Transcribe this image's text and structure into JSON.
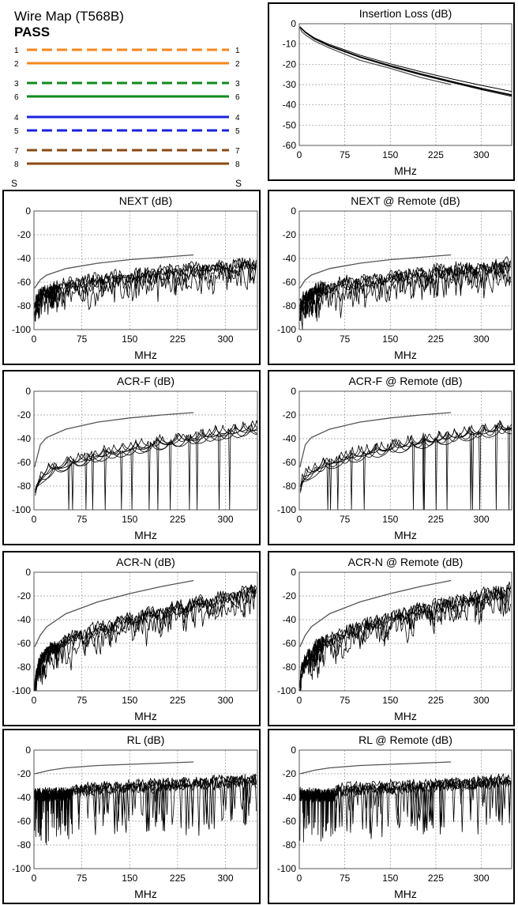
{
  "wire_map": {
    "title": "Wire Map (T568B)",
    "status": "PASS",
    "shield_left": "S",
    "shield_right": "S",
    "pins": [
      {
        "left": "1",
        "right": "1",
        "color": "#f5861f",
        "dashed": true
      },
      {
        "left": "2",
        "right": "2",
        "color": "#f5861f",
        "dashed": false
      },
      {
        "left": "3",
        "right": "3",
        "color": "#0f8a1e",
        "dashed": true
      },
      {
        "left": "6",
        "right": "6",
        "color": "#0f8a1e",
        "dashed": false
      },
      {
        "left": "4",
        "right": "4",
        "color": "#1a22e0",
        "dashed": false
      },
      {
        "left": "5",
        "right": "5",
        "color": "#1a22e0",
        "dashed": true
      },
      {
        "left": "7",
        "right": "7",
        "color": "#8a4a14",
        "dashed": true
      },
      {
        "left": "8",
        "right": "8",
        "color": "#8a4a14",
        "dashed": false
      }
    ]
  },
  "chart_data": [
    {
      "id": "il",
      "type": "line",
      "title": "Insertion Loss (dB)",
      "xlabel": "MHz",
      "ylabel": "",
      "xlim": [
        0,
        350
      ],
      "ylim": [
        -60,
        0
      ],
      "yticks": [
        0,
        -10,
        -20,
        -30,
        -40,
        -50,
        -60
      ],
      "xticks": [
        0,
        75,
        150,
        225,
        300
      ],
      "grid": true,
      "kind": "il",
      "limit": {
        "x": [
          1,
          4,
          10,
          25,
          50,
          100,
          150,
          200,
          250
        ],
        "y": [
          -2,
          -3.8,
          -5.5,
          -8.5,
          -12,
          -18,
          -22,
          -26.5,
          -30
        ]
      },
      "series": [
        {
          "x": [
            1,
            10,
            25,
            50,
            100,
            150,
            200,
            250,
            300,
            350
          ],
          "y": [
            -1.6,
            -4.2,
            -7.3,
            -10.8,
            -16.2,
            -20.6,
            -24.6,
            -28.3,
            -31.8,
            -35.0
          ]
        },
        {
          "x": [
            1,
            10,
            25,
            50,
            100,
            150,
            200,
            250,
            300,
            350
          ],
          "y": [
            -1.7,
            -4.4,
            -7.6,
            -11.1,
            -16.6,
            -21.1,
            -25.2,
            -28.9,
            -32.5,
            -35.8
          ]
        },
        {
          "x": [
            1,
            10,
            25,
            50,
            100,
            150,
            200,
            250,
            300,
            350
          ],
          "y": [
            -1.5,
            -4.0,
            -7.0,
            -10.3,
            -15.5,
            -19.8,
            -23.6,
            -27.1,
            -30.4,
            -33.4
          ]
        },
        {
          "x": [
            1,
            10,
            25,
            50,
            100,
            150,
            200,
            250,
            300,
            350
          ],
          "y": [
            -1.6,
            -4.3,
            -7.4,
            -10.9,
            -16.3,
            -20.8,
            -24.9,
            -28.6,
            -32.1,
            -35.3
          ]
        }
      ]
    },
    {
      "id": "next",
      "type": "line",
      "title": "NEXT (dB)",
      "xlabel": "MHz",
      "ylabel": "",
      "xlim": [
        0,
        350
      ],
      "ylim": [
        -100,
        0
      ],
      "yticks": [
        0,
        -20,
        -40,
        -60,
        -80,
        -100
      ],
      "xticks": [
        0,
        75,
        150,
        225,
        300
      ],
      "grid": true,
      "kind": "next",
      "seed": 11,
      "limit": {
        "x": [
          1,
          10,
          20,
          50,
          100,
          150,
          200,
          250
        ],
        "y": [
          -65,
          -58,
          -54,
          -48.5,
          -44,
          -41,
          -39,
          -37
        ]
      }
    },
    {
      "id": "next_r",
      "type": "line",
      "title": "NEXT @ Remote (dB)",
      "xlabel": "MHz",
      "ylabel": "",
      "xlim": [
        0,
        350
      ],
      "ylim": [
        -100,
        0
      ],
      "yticks": [
        0,
        -20,
        -40,
        -60,
        -80,
        -100
      ],
      "xticks": [
        0,
        75,
        150,
        225,
        300
      ],
      "grid": true,
      "kind": "next",
      "seed": 23,
      "limit": {
        "x": [
          1,
          10,
          20,
          50,
          100,
          150,
          200,
          250
        ],
        "y": [
          -65,
          -58,
          -54,
          -48.5,
          -44,
          -41,
          -39,
          -37
        ]
      }
    },
    {
      "id": "acrf",
      "type": "line",
      "title": "ACR-F (dB)",
      "xlabel": "MHz",
      "ylabel": "",
      "xlim": [
        0,
        350
      ],
      "ylim": [
        -100,
        0
      ],
      "yticks": [
        0,
        -20,
        -40,
        -60,
        -80,
        -100
      ],
      "xticks": [
        0,
        75,
        150,
        225,
        300
      ],
      "grid": true,
      "kind": "acrf",
      "seed": 37,
      "limit": {
        "x": [
          1,
          10,
          20,
          50,
          100,
          150,
          200,
          250
        ],
        "y": [
          -64,
          -45,
          -39,
          -32,
          -26,
          -22.5,
          -20,
          -18
        ]
      }
    },
    {
      "id": "acrf_r",
      "type": "line",
      "title": "ACR-F @ Remote (dB)",
      "xlabel": "MHz",
      "ylabel": "",
      "xlim": [
        0,
        350
      ],
      "ylim": [
        -100,
        0
      ],
      "yticks": [
        0,
        -20,
        -40,
        -60,
        -80,
        -100
      ],
      "xticks": [
        0,
        75,
        150,
        225,
        300
      ],
      "grid": true,
      "kind": "acrf",
      "seed": 41,
      "limit": {
        "x": [
          1,
          10,
          20,
          50,
          100,
          150,
          200,
          250
        ],
        "y": [
          -64,
          -45,
          -39,
          -32,
          -26,
          -22.5,
          -20,
          -18
        ]
      }
    },
    {
      "id": "acrn",
      "type": "line",
      "title": "ACR-N (dB)",
      "xlabel": "MHz",
      "ylabel": "",
      "xlim": [
        0,
        350
      ],
      "ylim": [
        -100,
        0
      ],
      "yticks": [
        0,
        -20,
        -40,
        -60,
        -80,
        -100
      ],
      "xticks": [
        0,
        75,
        150,
        225,
        300
      ],
      "grid": true,
      "kind": "acrn",
      "seed": 53,
      "limit": {
        "x": [
          1,
          10,
          20,
          50,
          100,
          150,
          200,
          250
        ],
        "y": [
          -63,
          -53,
          -46,
          -35,
          -25,
          -18,
          -12,
          -7
        ]
      }
    },
    {
      "id": "acrn_r",
      "type": "line",
      "title": "ACR-N @ Remote (dB)",
      "xlabel": "MHz",
      "ylabel": "",
      "xlim": [
        0,
        350
      ],
      "ylim": [
        -100,
        0
      ],
      "yticks": [
        0,
        -20,
        -40,
        -60,
        -80,
        -100
      ],
      "xticks": [
        0,
        75,
        150,
        225,
        300
      ],
      "grid": true,
      "kind": "acrn",
      "seed": 67,
      "limit": {
        "x": [
          1,
          10,
          20,
          50,
          100,
          150,
          200,
          250
        ],
        "y": [
          -63,
          -53,
          -46,
          -35,
          -25,
          -18,
          -12,
          -7
        ]
      }
    },
    {
      "id": "rl",
      "type": "line",
      "title": "RL (dB)",
      "xlabel": "MHz",
      "ylabel": "",
      "xlim": [
        0,
        350
      ],
      "ylim": [
        -100,
        0
      ],
      "yticks": [
        0,
        -20,
        -40,
        -60,
        -80,
        -100
      ],
      "xticks": [
        0,
        75,
        150,
        225,
        300
      ],
      "grid": true,
      "kind": "rl",
      "seed": 71,
      "limit": {
        "x": [
          1,
          25,
          50,
          100,
          150,
          200,
          250
        ],
        "y": [
          -20,
          -17,
          -15,
          -13,
          -12,
          -11,
          -10
        ]
      }
    },
    {
      "id": "rl_r",
      "type": "line",
      "title": "RL @ Remote (dB)",
      "xlabel": "MHz",
      "ylabel": "",
      "xlim": [
        0,
        350
      ],
      "ylim": [
        -100,
        0
      ],
      "yticks": [
        0,
        -20,
        -40,
        -60,
        -80,
        -100
      ],
      "xticks": [
        0,
        75,
        150,
        225,
        300
      ],
      "grid": true,
      "kind": "rl",
      "seed": 89,
      "limit": {
        "x": [
          1,
          25,
          50,
          100,
          150,
          200,
          250
        ],
        "y": [
          -20,
          -17,
          -15,
          -13,
          -12,
          -11,
          -10
        ]
      }
    }
  ]
}
